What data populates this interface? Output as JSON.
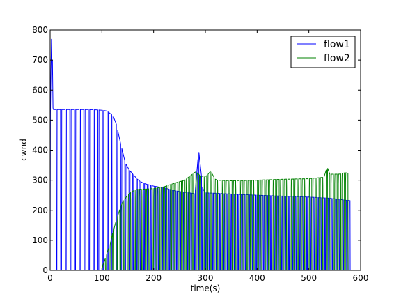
{
  "chart_data": {
    "type": "line",
    "xlabel": "time(s)",
    "ylabel": "cwnd",
    "xlim": [
      0,
      600
    ],
    "ylim": [
      0,
      800
    ],
    "xticks": [
      0,
      100,
      200,
      300,
      400,
      500,
      600
    ],
    "yticks": [
      0,
      100,
      200,
      300,
      400,
      500,
      600,
      700,
      800
    ],
    "grid": false,
    "legend_position": "top-right",
    "series": [
      {
        "name": "flow1",
        "color": "#0000ff",
        "envelope": [
          [
            0,
            520
          ],
          [
            2,
            700
          ],
          [
            4,
            770
          ],
          [
            6,
            650
          ],
          [
            8,
            540
          ],
          [
            10,
            535
          ],
          [
            80,
            535
          ],
          [
            100,
            533
          ],
          [
            110,
            530
          ],
          [
            125,
            510
          ],
          [
            135,
            430
          ],
          [
            145,
            360
          ],
          [
            150,
            340
          ],
          [
            160,
            320
          ],
          [
            170,
            300
          ],
          [
            180,
            290
          ],
          [
            190,
            285
          ],
          [
            200,
            280
          ],
          [
            220,
            275
          ],
          [
            240,
            265
          ],
          [
            260,
            260
          ],
          [
            280,
            255
          ],
          [
            287,
            400
          ],
          [
            290,
            360
          ],
          [
            295,
            265
          ],
          [
            300,
            258
          ],
          [
            350,
            254
          ],
          [
            400,
            250
          ],
          [
            450,
            247
          ],
          [
            500,
            244
          ],
          [
            540,
            240
          ],
          [
            560,
            236
          ],
          [
            578,
            232
          ]
        ],
        "cycle_seconds": [
          7,
          9,
          9,
          9,
          9,
          9,
          9,
          9,
          9,
          9,
          9,
          9,
          9,
          9,
          8,
          8,
          8,
          7,
          7,
          7,
          7,
          7,
          7,
          7,
          7,
          7,
          7,
          7,
          7,
          7,
          7,
          7,
          7,
          7,
          7,
          7,
          7,
          7,
          7,
          7,
          7,
          7,
          7,
          7,
          7,
          7,
          7,
          7,
          7,
          7,
          7,
          7,
          7,
          7,
          7,
          7,
          7,
          7,
          7,
          7,
          7,
          7,
          7,
          7,
          7,
          7,
          7,
          7,
          7,
          7,
          7,
          7,
          7,
          7,
          7,
          7,
          7
        ]
      },
      {
        "name": "flow2",
        "color": "#008000",
        "envelope": [
          [
            100,
            10
          ],
          [
            105,
            30
          ],
          [
            110,
            60
          ],
          [
            115,
            80
          ],
          [
            120,
            120
          ],
          [
            130,
            180
          ],
          [
            140,
            230
          ],
          [
            150,
            250
          ],
          [
            160,
            265
          ],
          [
            170,
            270
          ],
          [
            180,
            270
          ],
          [
            200,
            272
          ],
          [
            220,
            278
          ],
          [
            240,
            290
          ],
          [
            260,
            300
          ],
          [
            275,
            320
          ],
          [
            280,
            330
          ],
          [
            290,
            315
          ],
          [
            300,
            310
          ],
          [
            310,
            330
          ],
          [
            320,
            300
          ],
          [
            350,
            298
          ],
          [
            400,
            300
          ],
          [
            450,
            303
          ],
          [
            500,
            305
          ],
          [
            530,
            310
          ],
          [
            535,
            345
          ],
          [
            540,
            320
          ],
          [
            560,
            320
          ],
          [
            570,
            325
          ],
          [
            578,
            322
          ]
        ],
        "start_seconds": 100
      }
    ]
  }
}
